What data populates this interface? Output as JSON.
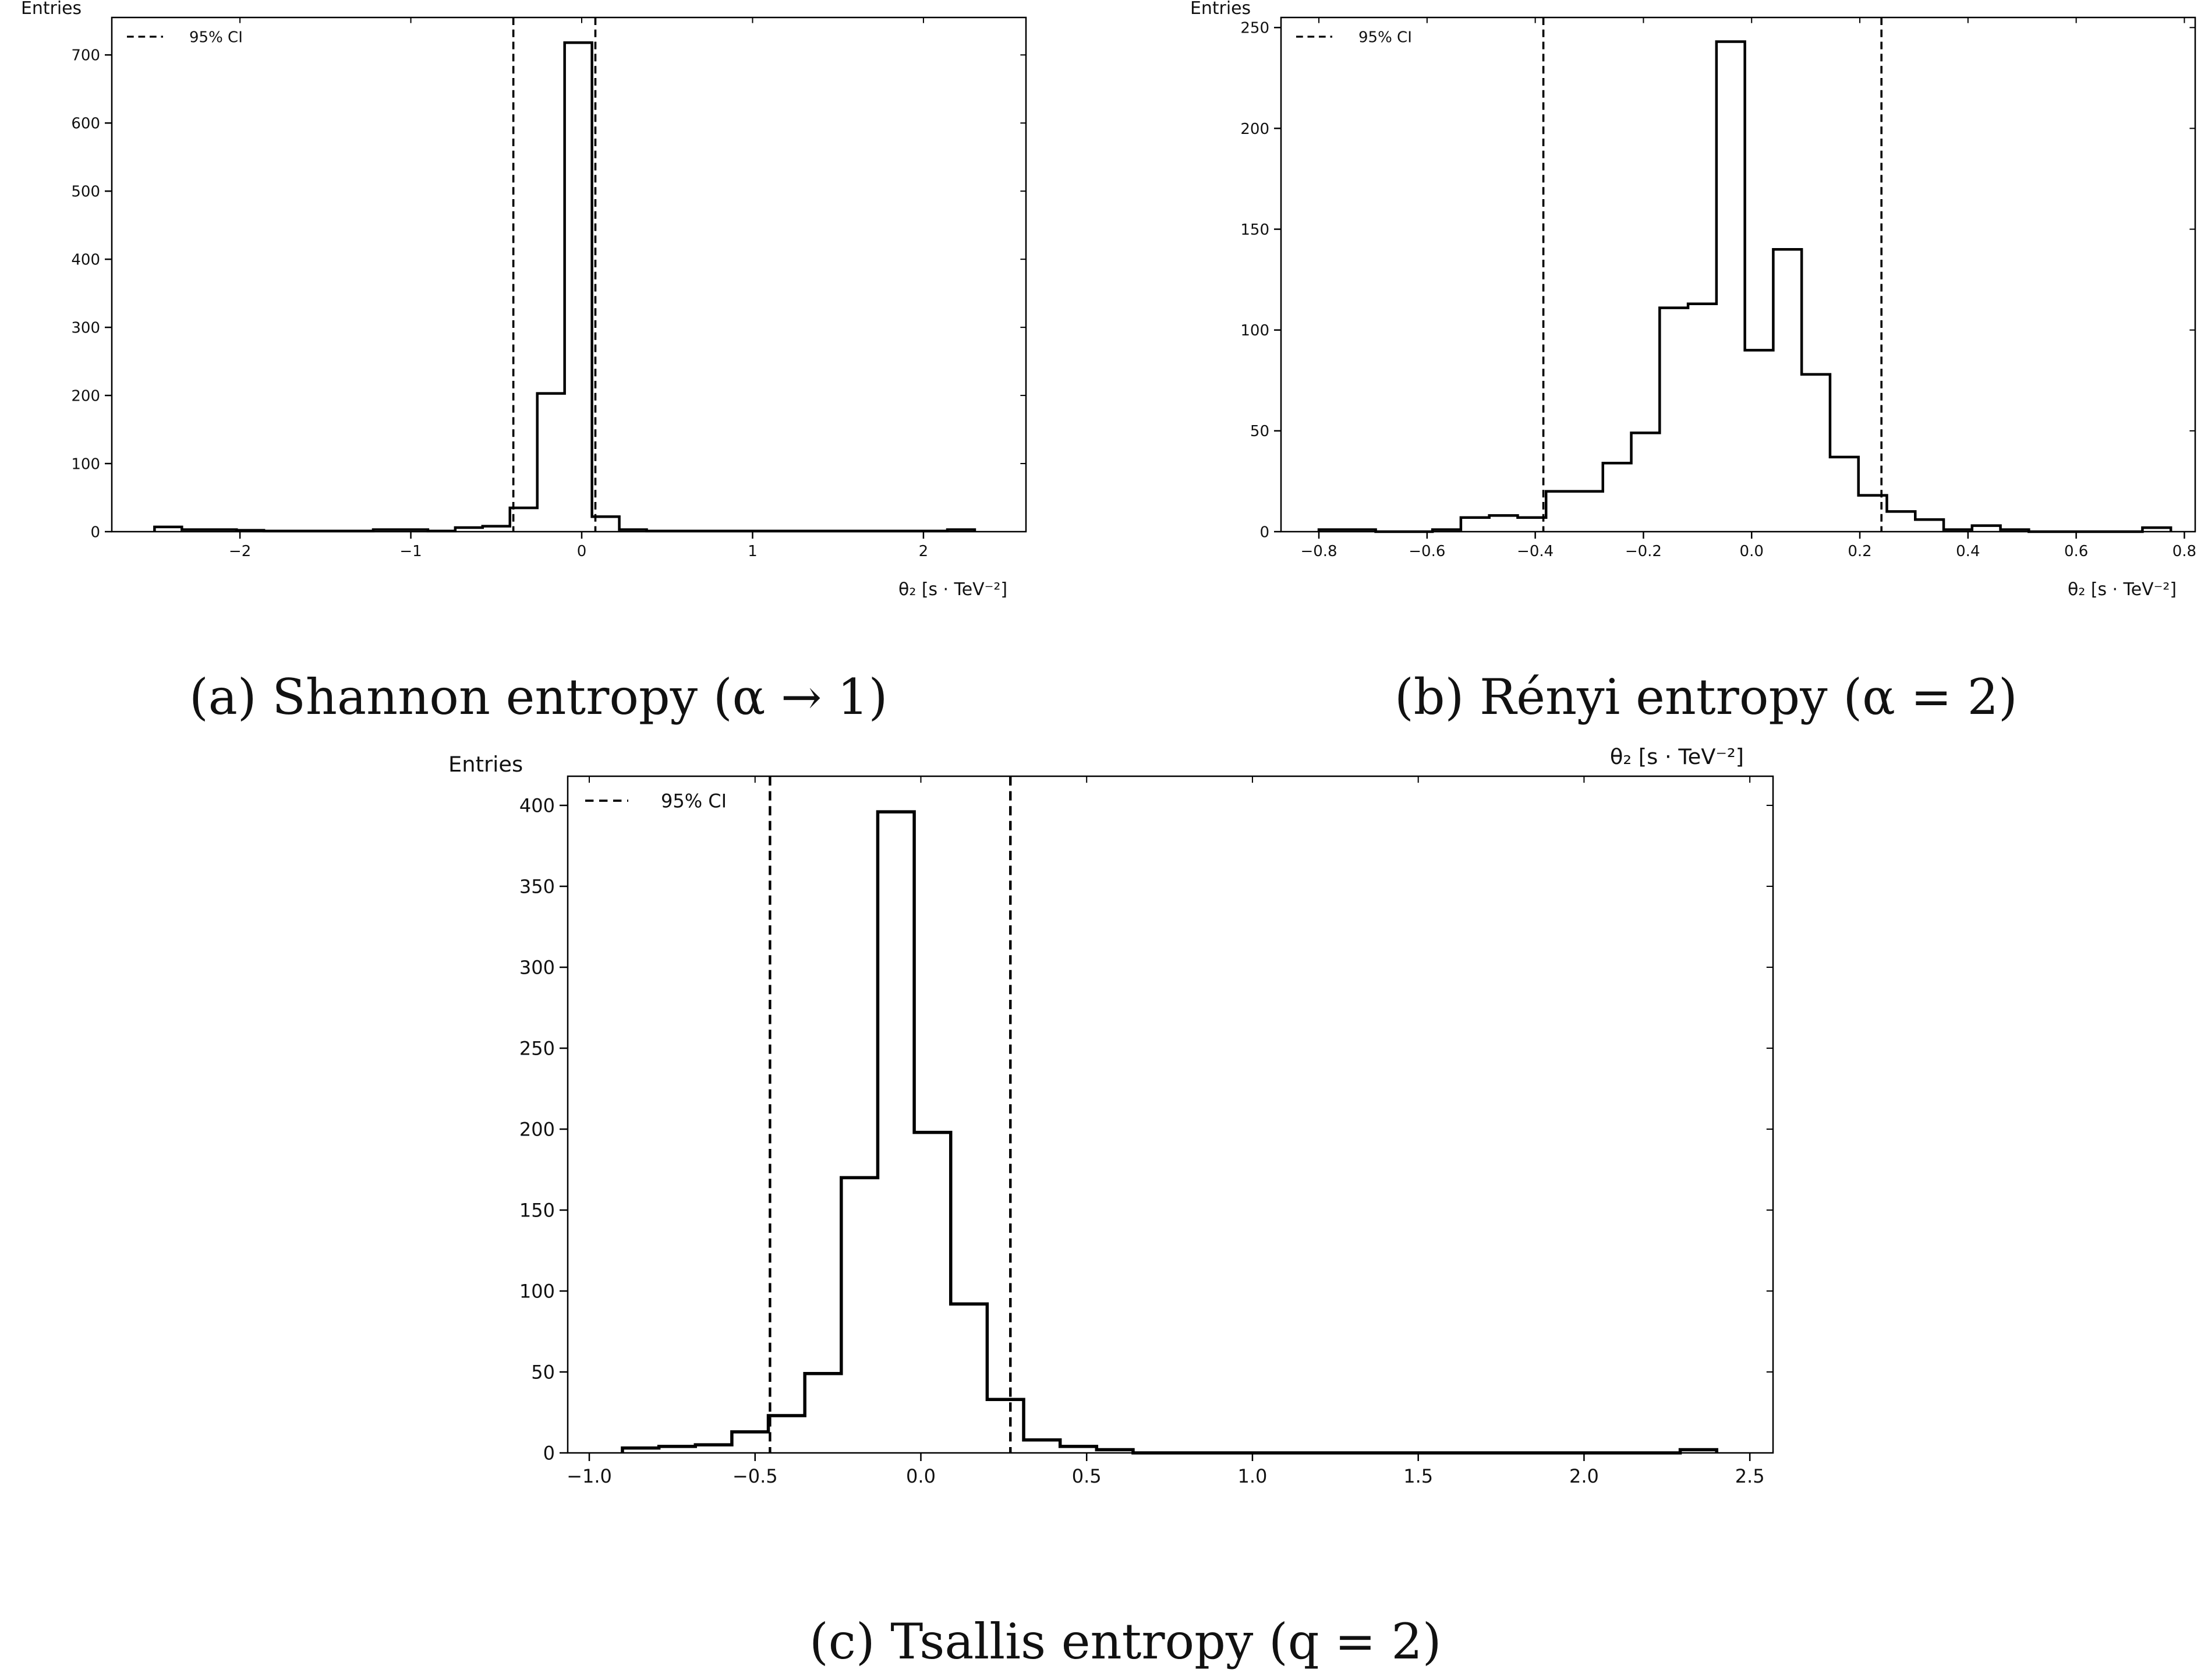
{
  "captions": {
    "a": "(a) Shannon entropy (α → 1)",
    "b": "(b) Rényi entropy (α = 2)",
    "c": "(c) Tsallis entropy (q = 2)"
  },
  "chart_data": [
    {
      "id": "a",
      "type": "histogram",
      "ylabel": "Entries",
      "xlabel": "θ₂ [s · TeV⁻²]",
      "legend": {
        "label": "95% CI",
        "placement": "top-left",
        "style": "dashed"
      },
      "xlim": [
        -2.75,
        2.6
      ],
      "ylim": [
        0,
        755
      ],
      "xticks": [
        -2,
        -1,
        0,
        1,
        2
      ],
      "yticks": [
        0,
        100,
        200,
        300,
        400,
        500,
        600,
        700
      ],
      "bin_edges": [
        -2.5,
        -2.34,
        -2.18,
        -2.02,
        -1.86,
        -1.7,
        -1.54,
        -1.38,
        -1.22,
        -1.06,
        -0.9,
        -0.74,
        -0.58,
        -0.42,
        -0.26,
        -0.1,
        0.06,
        0.22,
        0.38,
        0.54,
        0.7,
        0.86,
        1.02,
        1.18,
        1.34,
        1.5,
        1.66,
        1.82,
        1.98,
        2.14,
        2.3
      ],
      "counts": [
        7,
        3,
        3,
        2,
        1,
        1,
        1,
        1,
        3,
        3,
        1,
        6,
        8,
        35,
        203,
        718,
        22,
        3,
        1,
        1,
        1,
        1,
        1,
        1,
        1,
        1,
        1,
        1,
        1,
        3
      ],
      "ci_lines": [
        -0.4,
        0.08
      ]
    },
    {
      "id": "b",
      "type": "histogram",
      "ylabel": "Entries",
      "xlabel": "θ₂ [s · TeV⁻²]",
      "legend": {
        "label": "95% CI",
        "placement": "top-left",
        "style": "dashed"
      },
      "xlim": [
        -0.87,
        0.82
      ],
      "ylim": [
        0,
        255
      ],
      "xticks": [
        -0.8,
        -0.6,
        -0.4,
        -0.2,
        0.0,
        0.2,
        0.4,
        0.6,
        0.8
      ],
      "yticks": [
        0,
        50,
        100,
        150,
        200,
        250
      ],
      "bin_edges": [
        -0.8,
        -0.7475,
        -0.695,
        -0.6425,
        -0.59,
        -0.5375,
        -0.485,
        -0.4325,
        -0.38,
        -0.3275,
        -0.275,
        -0.2225,
        -0.17,
        -0.1175,
        -0.065,
        -0.0125,
        0.04,
        0.0925,
        0.145,
        0.1975,
        0.25,
        0.3025,
        0.355,
        0.4075,
        0.46,
        0.5125,
        0.565,
        0.6175,
        0.67,
        0.7225,
        0.775
      ],
      "counts": [
        1,
        1,
        0,
        0,
        1,
        7,
        8,
        7,
        20,
        20,
        34,
        49,
        111,
        113,
        243,
        90,
        140,
        78,
        37,
        18,
        10,
        6,
        1,
        3,
        1,
        0,
        0,
        0,
        0,
        2
      ],
      "ci_lines": [
        -0.385,
        0.24
      ]
    },
    {
      "id": "c",
      "type": "histogram",
      "ylabel": "Entries",
      "xlabel": "θ₂ [s · TeV⁻²]",
      "legend": {
        "label": "95% CI",
        "placement": "top-left",
        "style": "dashed"
      },
      "xlim": [
        -1.065,
        2.57
      ],
      "ylim": [
        0,
        418
      ],
      "xticks": [
        -1.0,
        -0.5,
        0.0,
        0.5,
        1.0,
        1.5,
        2.0,
        2.5
      ],
      "yticks": [
        0,
        50,
        100,
        150,
        200,
        250,
        300,
        350,
        400
      ],
      "bin_edges": [
        -0.9,
        -0.79,
        -0.68,
        -0.57,
        -0.46,
        -0.35,
        -0.24,
        -0.13,
        -0.02,
        0.09,
        0.2,
        0.31,
        0.42,
        0.53,
        0.64,
        0.75,
        0.86,
        0.97,
        1.08,
        1.19,
        1.3,
        1.41,
        1.52,
        1.63,
        1.74,
        1.85,
        1.96,
        2.07,
        2.18,
        2.29,
        2.4
      ],
      "counts": [
        3,
        4,
        5,
        13,
        23,
        49,
        170,
        396,
        198,
        92,
        33,
        8,
        4,
        2,
        0,
        0,
        0,
        0,
        0,
        0,
        0,
        0,
        0,
        0,
        0,
        0,
        0,
        0,
        0,
        2
      ],
      "ci_lines": [
        -0.455,
        0.27
      ]
    }
  ]
}
